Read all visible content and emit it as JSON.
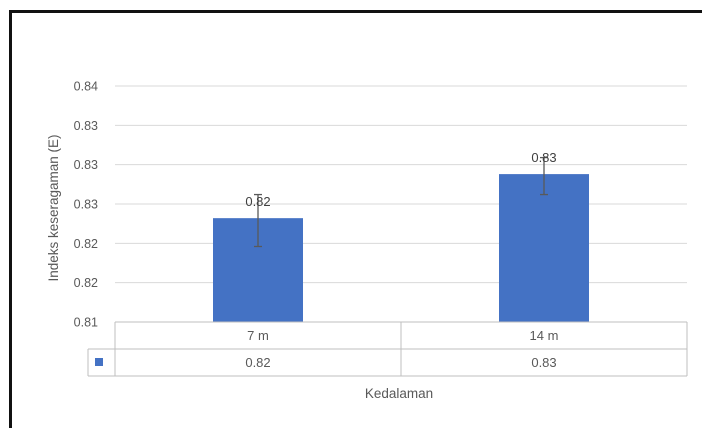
{
  "chart_data": {
    "type": "bar",
    "categories": [
      "7 m",
      "14 m"
    ],
    "values": [
      0.8232,
      0.8288
    ],
    "error_low": [
      0.8196,
      0.8262
    ],
    "error_high": [
      0.8262,
      0.8309
    ],
    "data_labels": [
      "0.82",
      "0.83"
    ],
    "ylabel": "Indeks keseragaman (E)",
    "xlabel": "Kedalaman",
    "ylim": [
      0.81,
      0.84
    ],
    "ytick_values": [
      0.81,
      0.815,
      0.82,
      0.825,
      0.83,
      0.835,
      0.84
    ],
    "ytick_labels": [
      "0.81",
      "0.82",
      "0.82",
      "0.83",
      "0.83",
      "0.83",
      "0.84"
    ],
    "grid": true,
    "legend": "data-table",
    "data_table": {
      "header": [
        "7 m",
        "14 m"
      ],
      "row": [
        "0.82",
        "0.83"
      ]
    },
    "bar_color": "#4472C4",
    "grid_color": "#D9D9D9",
    "error_bar_color": "#595959"
  }
}
